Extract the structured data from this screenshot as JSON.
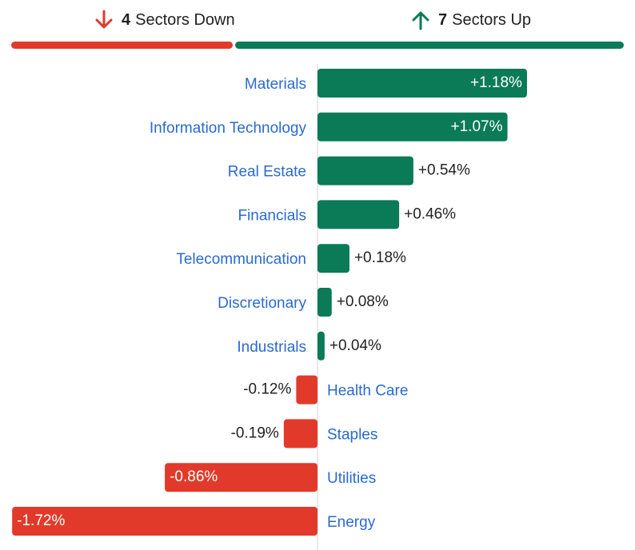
{
  "colors": {
    "down": "#e23a2a",
    "up": "#0b7a57",
    "label": "#2a6ad0",
    "text": "#222222",
    "axis": "#d0d0d0"
  },
  "summary": {
    "down": {
      "icon": "arrow-down-icon",
      "count": "4",
      "text": "Sectors Down"
    },
    "up": {
      "icon": "arrow-up-icon",
      "count": "7",
      "text": "Sectors Up"
    }
  },
  "chart_data": {
    "type": "bar",
    "orientation": "horizontal",
    "categories": [
      "Materials",
      "Information Technology",
      "Real Estate",
      "Financials",
      "Telecommunication",
      "Discretionary",
      "Industrials",
      "Health Care",
      "Staples",
      "Utilities",
      "Energy"
    ],
    "values": [
      1.18,
      1.07,
      0.54,
      0.46,
      0.18,
      0.08,
      0.04,
      -0.12,
      -0.19,
      -0.86,
      -1.72
    ],
    "value_labels": [
      "+1.18%",
      "+1.07%",
      "+0.54%",
      "+0.46%",
      "+0.18%",
      "+0.08%",
      "+0.04%",
      "-0.12%",
      "-0.19%",
      "-0.86%",
      "-1.72%"
    ],
    "xlim": [
      -1.72,
      1.72
    ],
    "title": "",
    "xlabel": "",
    "ylabel": ""
  }
}
